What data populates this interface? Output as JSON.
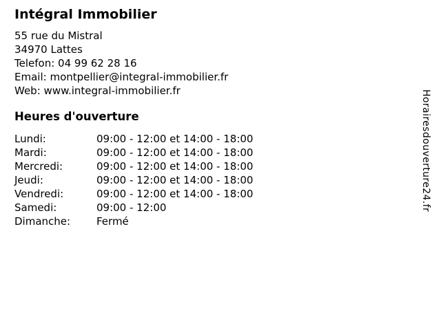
{
  "page": {
    "title": "Intégral Immobilier"
  },
  "contact": {
    "address_line1": "55 rue du Mistral",
    "address_line2": "34970 Lattes",
    "phone_label": "Telefon:",
    "phone_value": "04 99 62 28 16",
    "email_label": "Email:",
    "email_value": "montpellier@integral-immobilier.fr",
    "web_label": "Web:",
    "web_value": "www.integral-immobilier.fr"
  },
  "opening_hours": {
    "heading": "Heures d'ouverture",
    "rows": [
      {
        "day": "Lundi:",
        "hours": "09:00 - 12:00 et 14:00 - 18:00"
      },
      {
        "day": "Mardi:",
        "hours": "09:00 - 12:00 et 14:00 - 18:00"
      },
      {
        "day": "Mercredi:",
        "hours": "09:00 - 12:00 et 14:00 - 18:00"
      },
      {
        "day": "Jeudi:",
        "hours": "09:00 - 12:00 et 14:00 - 18:00"
      },
      {
        "day": "Vendredi:",
        "hours": "09:00 - 12:00 et 14:00 - 18:00"
      },
      {
        "day": "Samedi:",
        "hours": "09:00 - 12:00"
      },
      {
        "day": "Dimanche:",
        "hours": "Fermé"
      }
    ]
  },
  "watermark": {
    "text": "Horairesdouverture24.fr"
  },
  "colors": {
    "text": "#000000",
    "background": "#ffffff"
  }
}
